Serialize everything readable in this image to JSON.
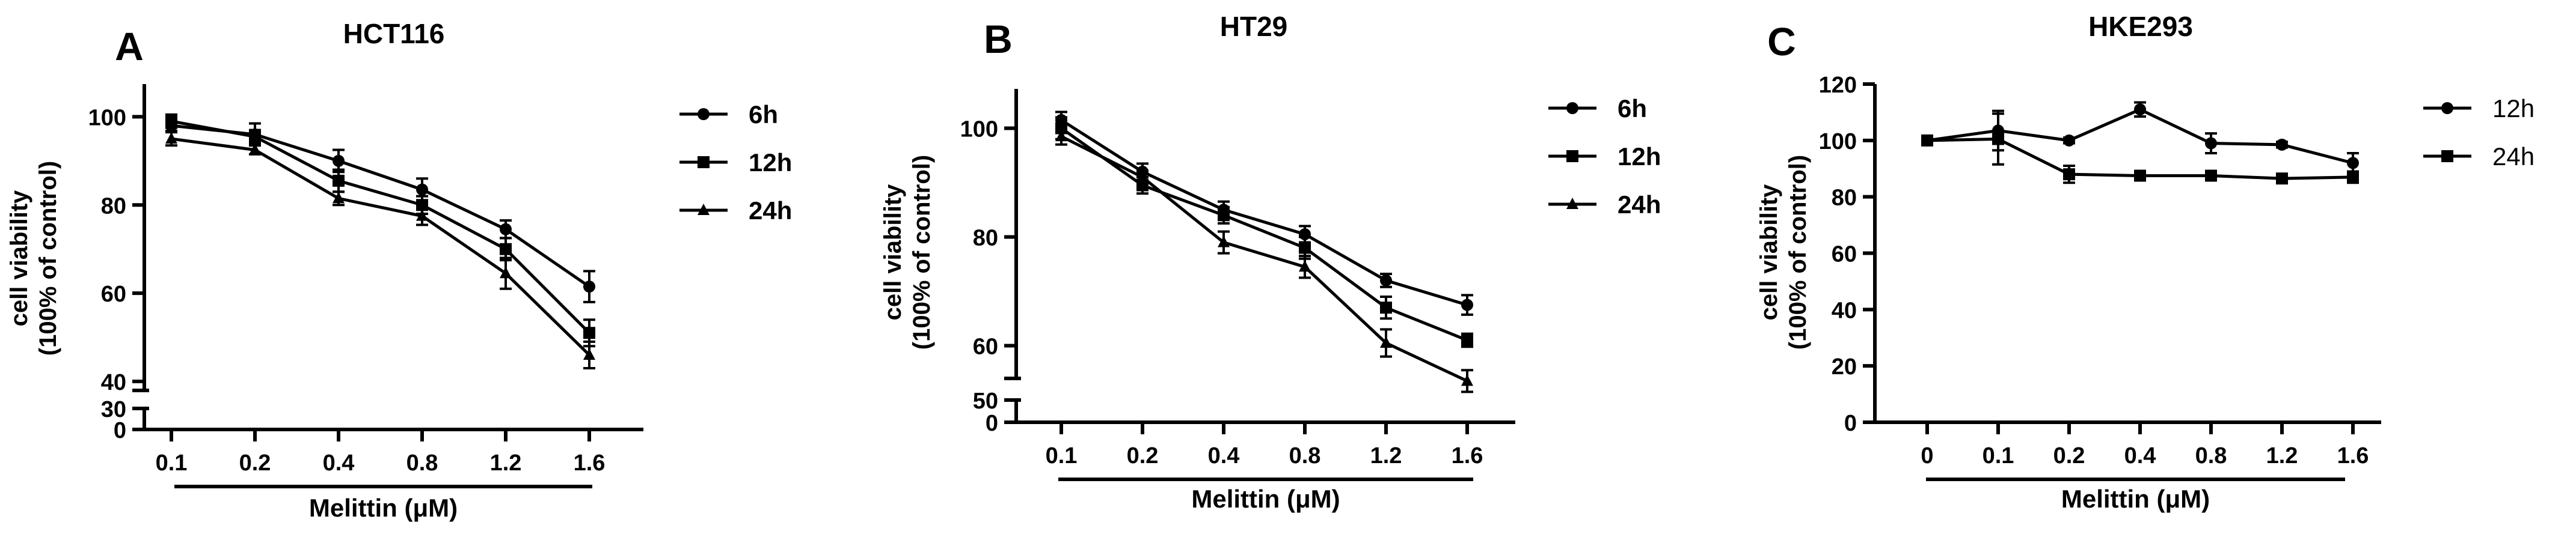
{
  "chart_data": [
    {
      "type": "line",
      "panel_letter": "A",
      "title": "HCT116",
      "xlabel": "Melittin (μM)",
      "ylabel_line1": "cell viability",
      "ylabel_line2": "(100% of control)",
      "categories": [
        "0.1",
        "0.2",
        "0.4",
        "0.8",
        "1.2",
        "1.6"
      ],
      "y_ticks_upper": [
        "100",
        "80",
        "60",
        "40"
      ],
      "y_ticks_lower": [
        "30",
        "0"
      ],
      "y_break": {
        "lower": [
          0,
          30
        ],
        "upper": [
          40,
          110
        ]
      },
      "series": [
        {
          "name": "6h",
          "marker": "circle",
          "values": [
            98,
            96,
            90,
            83.5,
            74.5,
            61.5
          ],
          "errors": [
            1.2,
            2.5,
            2.5,
            2.5,
            2,
            3.5
          ]
        },
        {
          "name": "12h",
          "marker": "square",
          "values": [
            99,
            95.5,
            85.5,
            80,
            70,
            51
          ],
          "errors": [
            1.5,
            1.5,
            2.5,
            2,
            2.5,
            3
          ]
        },
        {
          "name": "24h",
          "marker": "triangle",
          "values": [
            95,
            92.5,
            81.5,
            77.5,
            64.5,
            46
          ],
          "errors": [
            1.5,
            1,
            1.5,
            2,
            3.5,
            3
          ]
        }
      ],
      "legend_position": "right"
    },
    {
      "type": "line",
      "panel_letter": "B",
      "title": "HT29",
      "xlabel": "Melittin (μM)",
      "ylabel_line1": "cell viability",
      "ylabel_line2": "(100% of control)",
      "categories": [
        "0.1",
        "0.2",
        "0.4",
        "0.8",
        "1.2",
        "1.6"
      ],
      "y_ticks_upper": [
        "100",
        "80",
        "60"
      ],
      "y_ticks_lower": [
        "50",
        "0"
      ],
      "y_break": {
        "lower": [
          0,
          50
        ],
        "upper": [
          50,
          110
        ]
      },
      "series": [
        {
          "name": "6h",
          "marker": "circle",
          "values": [
            101.5,
            92,
            85,
            80.5,
            72,
            67.5
          ],
          "errors": [
            1.5,
            1.5,
            1.5,
            1.5,
            1.2,
            1.8
          ]
        },
        {
          "name": "12h",
          "marker": "square",
          "values": [
            100,
            89.5,
            84,
            78,
            67,
            61
          ],
          "errors": [
            2,
            1.5,
            1.5,
            2,
            2,
            1.2
          ]
        },
        {
          "name": "24h",
          "marker": "triangle",
          "values": [
            98.5,
            91,
            79,
            74.5,
            60.5,
            53.5
          ],
          "errors": [
            1.5,
            1.2,
            2,
            2,
            2.5,
            2
          ]
        }
      ],
      "legend_position": "right"
    },
    {
      "type": "line",
      "panel_letter": "C",
      "title": "HKE293",
      "xlabel": "Melittin (μM)",
      "ylabel_line1": "cell viability",
      "ylabel_line2": "(100% of control)",
      "categories": [
        "0",
        "0.1",
        "0.2",
        "0.4",
        "0.8",
        "1.2",
        "1.6"
      ],
      "ylim": [
        0,
        120
      ],
      "y_ticks": [
        "0",
        "20",
        "40",
        "60",
        "80",
        "100",
        "120"
      ],
      "series": [
        {
          "name": "12h",
          "marker": "circle",
          "values": [
            100,
            103.5,
            100,
            111,
            99,
            98.5,
            92
          ],
          "errors": [
            1,
            7,
            1,
            2.5,
            3.5,
            1,
            3.5
          ]
        },
        {
          "name": "24h",
          "marker": "square",
          "values": [
            100,
            100.5,
            88,
            87.5,
            87.5,
            86.5,
            87
          ],
          "errors": [
            1,
            9,
            3,
            1.5,
            1,
            1,
            2
          ]
        }
      ],
      "legend_position": "right"
    }
  ]
}
